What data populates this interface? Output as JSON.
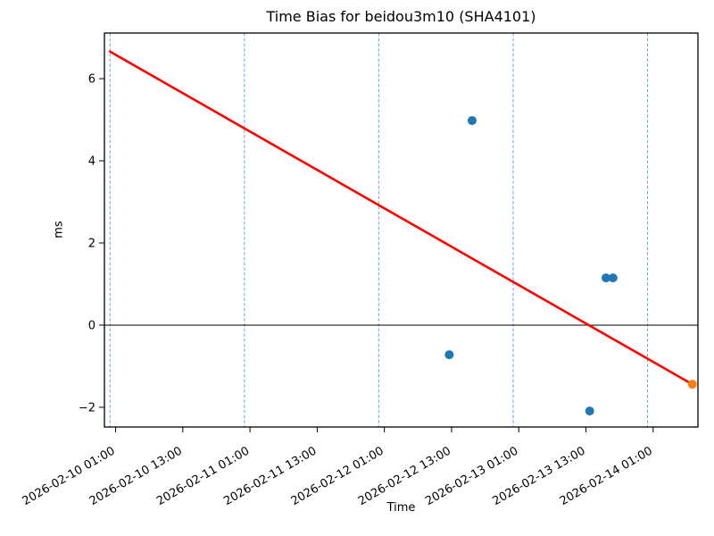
{
  "figure": {
    "title": "Time Bias for beidou3m10 (SHA4101)",
    "xlabel": "Time",
    "ylabel": "ms"
  },
  "chart_data": {
    "type": "scatter",
    "title": "Time Bias for beidou3m10 (SHA4101)",
    "xlabel": "Time",
    "ylabel": "ms",
    "xlim": [
      "2026-02-09 23:00",
      "2026-02-14 09:00"
    ],
    "ylim": [
      -2.48,
      7.11
    ],
    "y_ticks": [
      -2,
      0,
      2,
      4,
      6
    ],
    "x_ticks": [
      "2026-02-10 01:00",
      "2026-02-10 13:00",
      "2026-02-11 01:00",
      "2026-02-11 13:00",
      "2026-02-12 01:00",
      "2026-02-12 13:00",
      "2026-02-13 01:00",
      "2026-02-13 13:00",
      "2026-02-14 01:00"
    ],
    "day_gridlines": [
      "2026-02-10 00:00",
      "2026-02-11 00:00",
      "2026-02-12 00:00",
      "2026-02-13 00:00",
      "2026-02-14 00:00"
    ],
    "grid": "vertical-dashed",
    "zero_line": true,
    "legend": "none",
    "series": [
      {
        "name": "trend-line",
        "type": "line",
        "color": "#ff0000",
        "points": [
          {
            "t": "2026-02-10 00:00",
            "v": 6.66
          },
          {
            "t": "2026-02-14 08:00",
            "v": -1.44
          }
        ]
      },
      {
        "name": "bias-observations",
        "type": "scatter",
        "color": "#1f77b4",
        "points": [
          {
            "t": "2026-02-12 12:35",
            "v": -0.72
          },
          {
            "t": "2026-02-12 16:40",
            "v": 4.98
          },
          {
            "t": "2026-02-13 13:40",
            "v": -2.09
          },
          {
            "t": "2026-02-13 16:35",
            "v": 1.15
          },
          {
            "t": "2026-02-13 17:50",
            "v": 1.15
          }
        ]
      },
      {
        "name": "latest-point",
        "type": "scatter",
        "color": "#ff7f0e",
        "points": [
          {
            "t": "2026-02-14 08:00",
            "v": -1.44
          }
        ]
      }
    ],
    "colors": {
      "grid": "#6aa5d8",
      "zero_line": "#000000",
      "frame": "#000000",
      "trend": "#ff0000",
      "observations": "#1f77b4",
      "latest": "#ff7f0e"
    }
  }
}
